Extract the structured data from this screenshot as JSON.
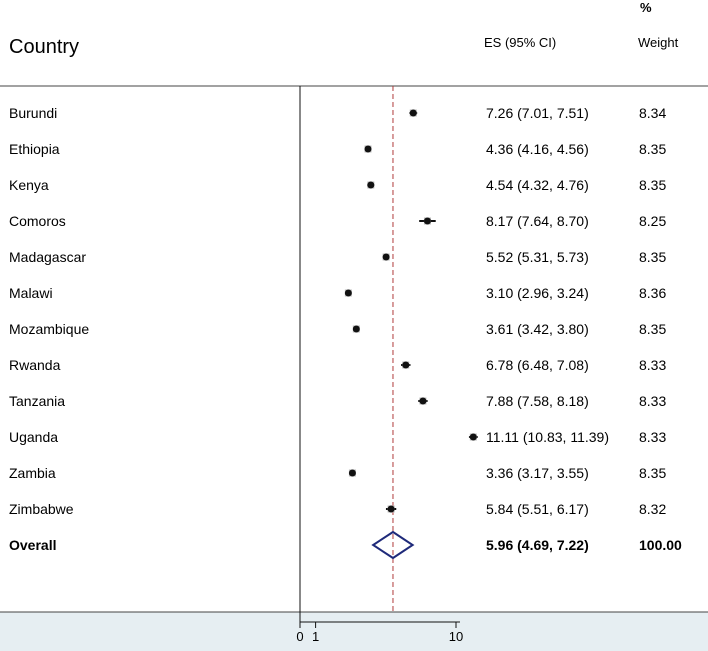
{
  "chart_data": {
    "type": "forest",
    "headers": {
      "country": "Country",
      "es": "ES (95% CI)",
      "weight_pct": "%",
      "weight": "Weight"
    },
    "rows": [
      {
        "country": "Burundi",
        "es": 7.26,
        "lo": 7.01,
        "hi": 7.51,
        "ci_text": "7.26 (7.01, 7.51)",
        "weight": "8.34"
      },
      {
        "country": "Ethiopia",
        "es": 4.36,
        "lo": 4.16,
        "hi": 4.56,
        "ci_text": "4.36 (4.16, 4.56)",
        "weight": "8.35"
      },
      {
        "country": "Kenya",
        "es": 4.54,
        "lo": 4.32,
        "hi": 4.76,
        "ci_text": "4.54 (4.32, 4.76)",
        "weight": "8.35"
      },
      {
        "country": "Comoros",
        "es": 8.17,
        "lo": 7.64,
        "hi": 8.7,
        "ci_text": "8.17 (7.64, 8.70)",
        "weight": "8.25"
      },
      {
        "country": "Madagascar",
        "es": 5.52,
        "lo": 5.31,
        "hi": 5.73,
        "ci_text": "5.52 (5.31, 5.73)",
        "weight": "8.35"
      },
      {
        "country": "Malawi",
        "es": 3.1,
        "lo": 2.96,
        "hi": 3.24,
        "ci_text": "3.10 (2.96, 3.24)",
        "weight": "8.36"
      },
      {
        "country": "Mozambique",
        "es": 3.61,
        "lo": 3.42,
        "hi": 3.8,
        "ci_text": "3.61 (3.42, 3.80)",
        "weight": "8.35"
      },
      {
        "country": "Rwanda",
        "es": 6.78,
        "lo": 6.48,
        "hi": 7.08,
        "ci_text": "6.78 (6.48, 7.08)",
        "weight": "8.33"
      },
      {
        "country": "Tanzania",
        "es": 7.88,
        "lo": 7.58,
        "hi": 8.18,
        "ci_text": "7.88 (7.58, 8.18)",
        "weight": "8.33"
      },
      {
        "country": "Uganda",
        "es": 11.11,
        "lo": 10.83,
        "hi": 11.39,
        "ci_text": "11.11 (10.83, 11.39)",
        "weight": "8.33"
      },
      {
        "country": "Zambia",
        "es": 3.36,
        "lo": 3.17,
        "hi": 3.55,
        "ci_text": "3.36 (3.17, 3.55)",
        "weight": "8.35"
      },
      {
        "country": "Zimbabwe",
        "es": 5.84,
        "lo": 5.51,
        "hi": 6.17,
        "ci_text": "5.84 (5.51, 6.17)",
        "weight": "8.32"
      }
    ],
    "overall": {
      "country": "Overall",
      "es": 5.96,
      "lo": 4.69,
      "hi": 7.22,
      "ci_text": "5.96 (4.69, 7.22)",
      "weight": "100.00"
    },
    "x_ticks": [
      {
        "value": 0,
        "label": "0"
      },
      {
        "value": 1,
        "label": "1"
      },
      {
        "value": 10,
        "label": "10"
      }
    ],
    "null_value": 0,
    "xlim": [
      0,
      10
    ],
    "colors": {
      "point": "#111111",
      "reference_line": "#b03a3a",
      "diamond": "#1f2a7a",
      "axis_band": "#e6eef2"
    }
  }
}
